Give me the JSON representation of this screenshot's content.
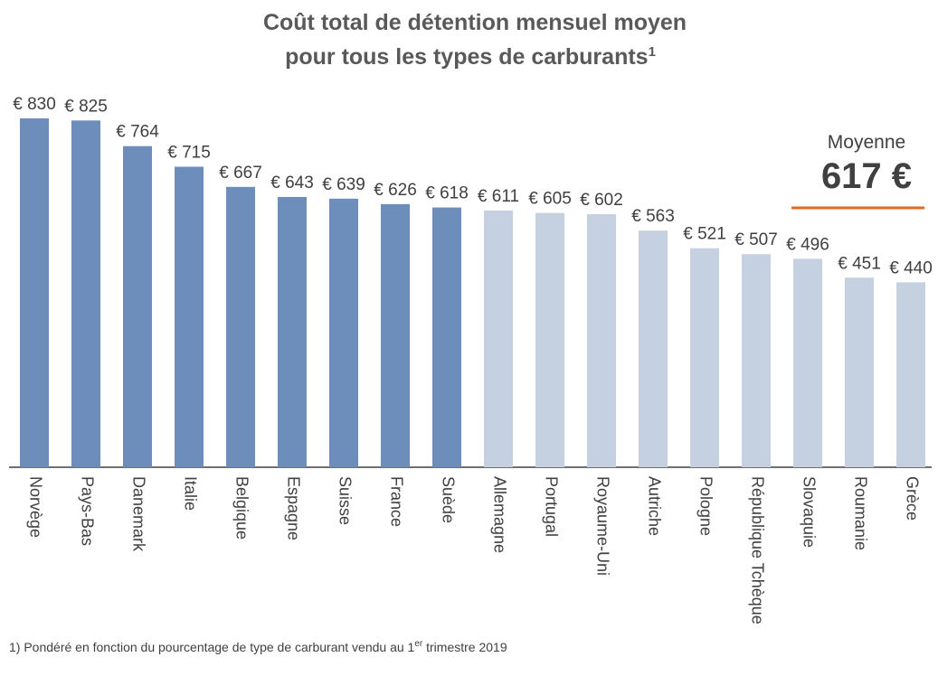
{
  "chart_data": {
    "type": "bar",
    "title": [
      "Coût total de détention mensuel moyen",
      "pour tous les types de carburants"
    ],
    "title_note": "1",
    "categories": [
      "Norvège",
      "Pays-Bas",
      "Danemark",
      "Italie",
      "Belgique",
      "Espagne",
      "Suisse",
      "France",
      "Suède",
      "Allemagne",
      "Portugal",
      "Royaume-Uni",
      "Autriche",
      "Pologne",
      "République Tchèque",
      "Slovaquie",
      "Roumanie",
      "Grèce"
    ],
    "values": [
      830,
      825,
      764,
      715,
      667,
      643,
      639,
      626,
      618,
      611,
      605,
      602,
      563,
      521,
      507,
      496,
      451,
      440
    ],
    "value_labels": [
      "€ 830",
      "€ 825",
      "€ 764",
      "€ 715",
      "€ 667",
      "€ 643",
      "€ 639",
      "€ 626",
      "€ 618",
      "€ 611",
      "€ 605",
      "€ 602",
      "€ 563",
      "€ 521",
      "€ 507",
      "€ 496",
      "€ 451",
      "€ 440"
    ],
    "colors": [
      "#6d8ebb",
      "#6d8ebb",
      "#6d8ebb",
      "#6d8ebb",
      "#6d8ebb",
      "#6d8ebb",
      "#6d8ebb",
      "#6d8ebb",
      "#6d8ebb",
      "#c5d0e0",
      "#c5d0e0",
      "#c5d0e0",
      "#c5d0e0",
      "#c5d0e0",
      "#c5d0e0",
      "#c5d0e0",
      "#c5d0e0",
      "#c5d0e0"
    ],
    "ylim": [
      0,
      830
    ],
    "average": {
      "label": "Moyenne",
      "value": 617,
      "value_label": "617 €",
      "color": "#e8691e"
    },
    "footnote": [
      "1) Pondéré en fonction du pourcentage de type de carburant vendu au 1",
      "er",
      " trimestre 2019"
    ]
  }
}
